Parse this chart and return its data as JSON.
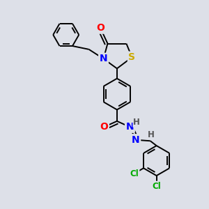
{
  "background_color": "#dde0e8",
  "atoms": {
    "S": {
      "color": "#ccaa00"
    },
    "N": {
      "color": "#0000ff"
    },
    "O": {
      "color": "#ff0000"
    },
    "Cl": {
      "color": "#00aa00"
    },
    "H": {
      "color": "#555555"
    }
  },
  "bond_color": "#000000",
  "bond_width": 1.4,
  "font_size": 8.5,
  "dpi": 100,
  "figsize": [
    3.0,
    3.0
  ],
  "xlim": [
    0,
    10
  ],
  "ylim": [
    0,
    10
  ]
}
